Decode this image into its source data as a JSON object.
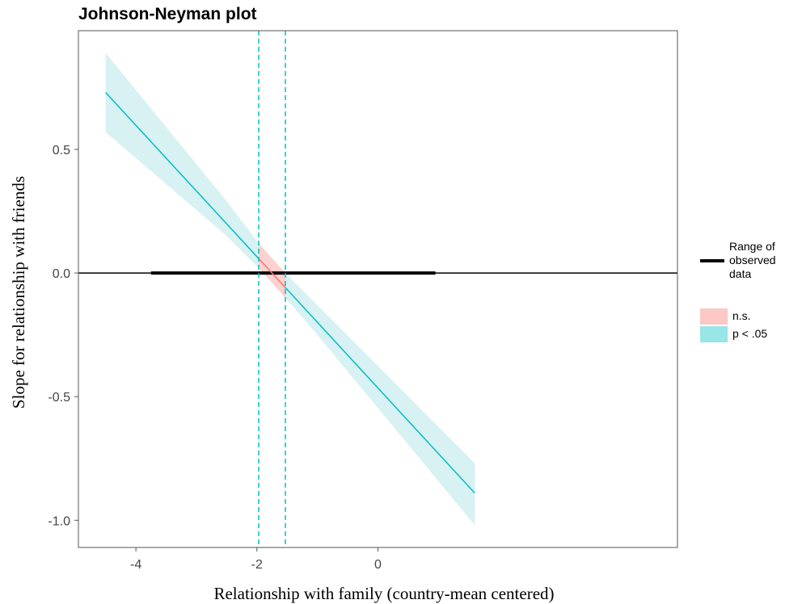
{
  "chart_data": {
    "type": "line",
    "title": "Johnson-Neyman plot",
    "xlabel": "Relationship with family (country-mean centered)",
    "ylabel": "Slope for relationship with friends",
    "xlim": [
      -4.95,
      4.95
    ],
    "ylim": [
      -1.11,
      0.98
    ],
    "x_ticks": [
      -4,
      -2,
      0
    ],
    "x_tick_labels": [
      "-4",
      "-2",
      "0"
    ],
    "y_ticks": [
      0.5,
      0.0,
      -0.5,
      -1.0
    ],
    "y_tick_labels": [
      "0.5",
      "0.0",
      "-0.5",
      "-1.0"
    ],
    "grid": false,
    "slope_line": {
      "x": [
        -4.5,
        1.6
      ],
      "y": [
        0.73,
        -0.89
      ]
    },
    "confidence_band": {
      "x": [
        -4.5,
        -2.5,
        -1.97,
        -1.75,
        -1.53,
        -1.0,
        1.6
      ],
      "lower": [
        0.57,
        0.15,
        0.02,
        -0.04,
        -0.1,
        -0.25,
        -1.02
      ],
      "upper": [
        0.89,
        0.29,
        0.12,
        0.06,
        0.0,
        -0.13,
        -0.77
      ]
    },
    "significance_bounds": [
      -1.97,
      -1.53
    ],
    "zero_line": 0.0,
    "observed_range": [
      -3.75,
      0.95
    ],
    "legend": {
      "position": "right",
      "range_label": "Range of observed data",
      "range_label_lines": [
        "Range of",
        "observed",
        "data"
      ],
      "categories": [
        {
          "label": "n.s.",
          "color": "#F8766D"
        },
        {
          "label": "p < .05",
          "color": "#00BFC4"
        }
      ]
    },
    "colors": {
      "significant": "#00BFC4",
      "not_significant": "#F8766D",
      "significant_fill": "#d8f1f3",
      "not_significant_fill": "#fbd2cf",
      "observed_range": "#000000"
    }
  }
}
